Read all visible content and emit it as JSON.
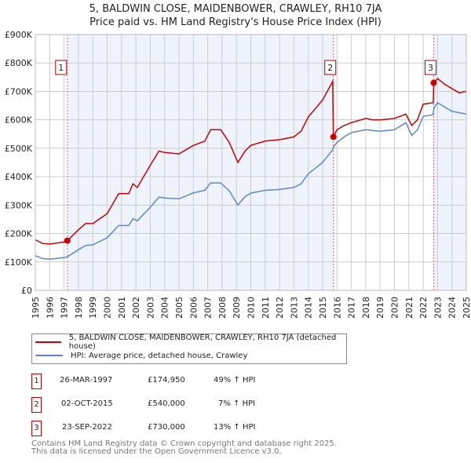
{
  "chart_data": {
    "type": "line",
    "title": "5, BALDWIN CLOSE, MAIDENBOWER, CRAWLEY, RH10 7JA",
    "subtitle": "Price paid vs. HM Land Registry's House Price Index (HPI)",
    "xlim": [
      1995,
      2025
    ],
    "ylim": [
      0,
      900000
    ],
    "x_ticks": [
      "1995",
      "1996",
      "1997",
      "1998",
      "1999",
      "2000",
      "2001",
      "2002",
      "2003",
      "2004",
      "2005",
      "2006",
      "2007",
      "2008",
      "2009",
      "2010",
      "2011",
      "2012",
      "2013",
      "2014",
      "2015",
      "2016",
      "2017",
      "2018",
      "2019",
      "2020",
      "2021",
      "2022",
      "2023",
      "2024",
      "2025"
    ],
    "y_ticks": [
      "£0",
      "£100K",
      "£200K",
      "£300K",
      "£400K",
      "£500K",
      "£600K",
      "£700K",
      "£800K",
      "£900K"
    ],
    "grid": true,
    "series": [
      {
        "name": "5, BALDWIN CLOSE, MAIDENBOWER, CRAWLEY, RH10 7JA (detached house)",
        "color": "#cc0000",
        "x": [
          1995,
          1995.5,
          1996,
          1997,
          1997.23,
          1998,
          1998.5,
          1999,
          2000,
          2000.8,
          2001.5,
          2001.8,
          2002.1,
          2003,
          2003.6,
          2004,
          2005,
          2006,
          2006.8,
          2007.2,
          2007.9,
          2008.5,
          2009.1,
          2009.6,
          2010,
          2011,
          2012,
          2013,
          2013.5,
          2014,
          2014.5,
          2015,
          2015.7,
          2015.75,
          2016,
          2016.5,
          2017,
          2018,
          2018.5,
          2019,
          2020,
          2020.8,
          2021.2,
          2021.6,
          2022,
          2022.7,
          2022.73,
          2023,
          2023.5,
          2024,
          2024.5,
          2025
        ],
        "y": [
          178000,
          165000,
          163000,
          170000,
          174950,
          213000,
          235000,
          235000,
          270000,
          340000,
          340000,
          375000,
          362000,
          440000,
          490000,
          485000,
          480000,
          510000,
          525000,
          565000,
          565000,
          520000,
          450000,
          490000,
          510000,
          525000,
          530000,
          540000,
          560000,
          610000,
          640000,
          670000,
          735000,
          540000,
          565000,
          580000,
          590000,
          605000,
          600000,
          600000,
          605000,
          620000,
          580000,
          600000,
          655000,
          660000,
          730000,
          745000,
          725000,
          710000,
          695000,
          700000
        ]
      },
      {
        "name": "HPI: Average price, detached house, Crawley",
        "color": "#5b8ac9",
        "x": [
          1995,
          1995.5,
          1996,
          1997,
          1997.23,
          1998,
          1998.5,
          1999,
          2000,
          2000.8,
          2001.5,
          2001.8,
          2002.1,
          2003,
          2003.6,
          2004,
          2005,
          2006,
          2006.8,
          2007.2,
          2007.9,
          2008.5,
          2009.1,
          2009.6,
          2010,
          2011,
          2012,
          2013,
          2013.5,
          2014,
          2014.5,
          2015,
          2015.7,
          2015.75,
          2016,
          2016.5,
          2017,
          2018,
          2018.5,
          2019,
          2020,
          2020.8,
          2021.2,
          2021.6,
          2022,
          2022.7,
          2022.73,
          2023,
          2023.5,
          2024,
          2024.5,
          2025
        ],
        "y": [
          122000,
          112000,
          110000,
          115000,
          118000,
          143000,
          158000,
          160000,
          185000,
          228000,
          228000,
          252000,
          245000,
          292000,
          328000,
          325000,
          322000,
          343000,
          352000,
          378000,
          378000,
          350000,
          300000,
          330000,
          342000,
          352000,
          355000,
          362000,
          375000,
          410000,
          430000,
          450000,
          495000,
          505000,
          520000,
          540000,
          555000,
          565000,
          562000,
          560000,
          565000,
          590000,
          545000,
          565000,
          612000,
          618000,
          640000,
          660000,
          645000,
          630000,
          625000,
          620000
        ]
      }
    ],
    "sales": [
      {
        "label": "1",
        "x": 1997.23,
        "y": 174950
      },
      {
        "label": "2",
        "x": 2015.75,
        "y": 540000
      },
      {
        "label": "3",
        "x": 2022.73,
        "y": 730000
      }
    ],
    "shaded_ranges": [
      [
        1997.23,
        2015.75
      ],
      [
        2022.73,
        2025
      ]
    ]
  },
  "table": [
    {
      "num": "1",
      "date": "26-MAR-1997",
      "price": "£174,950",
      "hpi": "49% ↑ HPI"
    },
    {
      "num": "2",
      "date": "02-OCT-2015",
      "price": "£540,000",
      "hpi": "7% ↑ HPI"
    },
    {
      "num": "3",
      "date": "23-SEP-2022",
      "price": "£730,000",
      "hpi": "13% ↑ HPI"
    }
  ],
  "footer": [
    "Contains HM Land Registry data © Crown copyright and database right 2025.",
    "This data is licensed under the Open Government Licence v3.0."
  ]
}
